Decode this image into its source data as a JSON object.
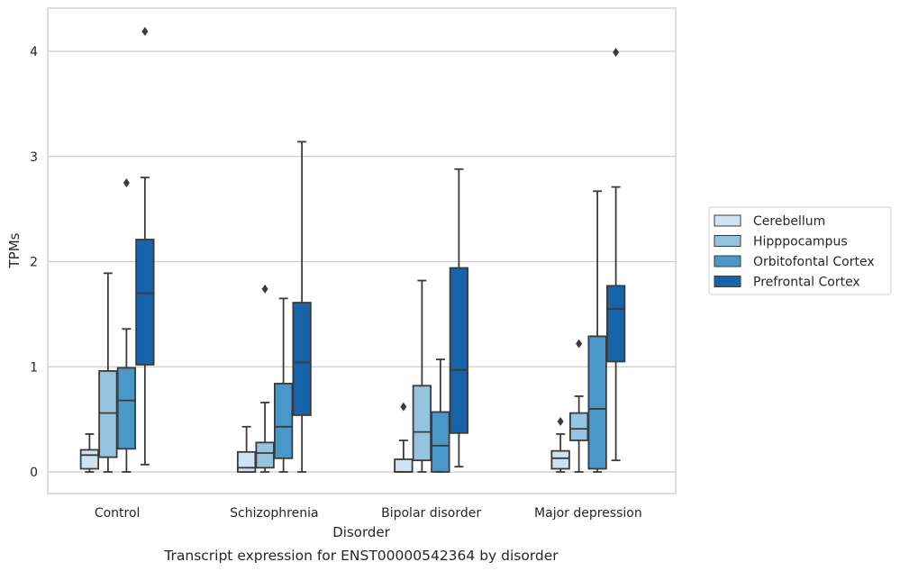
{
  "chart_data": {
    "type": "box",
    "title": "",
    "caption": "Transcript expression for ENST00000542364 by disorder",
    "xlabel": "Disorder",
    "ylabel": "TPMs",
    "ylim": [
      -0.2,
      4.4
    ],
    "yticks": [
      0,
      1,
      2,
      3,
      4
    ],
    "grid": "horizontal",
    "legend_position": "right",
    "categories": [
      "Control",
      "Schizophrenia",
      "Bipolar disorder",
      "Major depression"
    ],
    "series": [
      {
        "name": "Cerebellum",
        "color": "#d0e1f2",
        "boxes": [
          {
            "whisker_low": 0.0,
            "q1": 0.03,
            "median": 0.16,
            "q3": 0.21,
            "whisker_high": 0.36,
            "outliers": []
          },
          {
            "whisker_low": 0.0,
            "q1": 0.0,
            "median": 0.04,
            "q3": 0.19,
            "whisker_high": 0.43,
            "outliers": []
          },
          {
            "whisker_low": 0.0,
            "q1": 0.0,
            "median": 0.0,
            "q3": 0.12,
            "whisker_high": 0.3,
            "outliers": [
              0.62
            ]
          },
          {
            "whisker_low": 0.0,
            "q1": 0.03,
            "median": 0.13,
            "q3": 0.2,
            "whisker_high": 0.36,
            "outliers": [
              0.48
            ]
          }
        ]
      },
      {
        "name": "Hipppocampus",
        "color": "#94c4df",
        "boxes": [
          {
            "whisker_low": 0.0,
            "q1": 0.14,
            "median": 0.56,
            "q3": 0.96,
            "whisker_high": 1.89,
            "outliers": []
          },
          {
            "whisker_low": 0.0,
            "q1": 0.04,
            "median": 0.18,
            "q3": 0.28,
            "whisker_high": 0.66,
            "outliers": [
              1.74
            ]
          },
          {
            "whisker_low": 0.0,
            "q1": 0.11,
            "median": 0.38,
            "q3": 0.82,
            "whisker_high": 1.82,
            "outliers": []
          },
          {
            "whisker_low": 0.0,
            "q1": 0.3,
            "median": 0.41,
            "q3": 0.56,
            "whisker_high": 0.72,
            "outliers": [
              1.22
            ]
          }
        ]
      },
      {
        "name": "Orbitofontal Cortex",
        "color": "#4a98c9",
        "boxes": [
          {
            "whisker_low": 0.0,
            "q1": 0.22,
            "median": 0.68,
            "q3": 0.99,
            "whisker_high": 1.36,
            "outliers": [
              2.75
            ]
          },
          {
            "whisker_low": 0.0,
            "q1": 0.13,
            "median": 0.43,
            "q3": 0.84,
            "whisker_high": 1.65,
            "outliers": []
          },
          {
            "whisker_low": 0.0,
            "q1": 0.0,
            "median": 0.25,
            "q3": 0.57,
            "whisker_high": 1.07,
            "outliers": []
          },
          {
            "whisker_low": 0.0,
            "q1": 0.03,
            "median": 0.6,
            "q3": 1.29,
            "whisker_high": 2.67,
            "outliers": []
          }
        ]
      },
      {
        "name": "Prefrontal Cortex",
        "color": "#1764ab",
        "boxes": [
          {
            "whisker_low": 0.07,
            "q1": 1.02,
            "median": 1.7,
            "q3": 2.21,
            "whisker_high": 2.8,
            "outliers": [
              4.19
            ]
          },
          {
            "whisker_low": 0.0,
            "q1": 0.54,
            "median": 1.04,
            "q3": 1.61,
            "whisker_high": 3.14,
            "outliers": []
          },
          {
            "whisker_low": 0.05,
            "q1": 0.37,
            "median": 0.97,
            "q3": 1.94,
            "whisker_high": 2.88,
            "outliers": []
          },
          {
            "whisker_low": 0.11,
            "q1": 1.05,
            "median": 1.55,
            "q3": 1.77,
            "whisker_high": 2.71,
            "outliers": [
              3.99
            ]
          }
        ]
      }
    ]
  }
}
